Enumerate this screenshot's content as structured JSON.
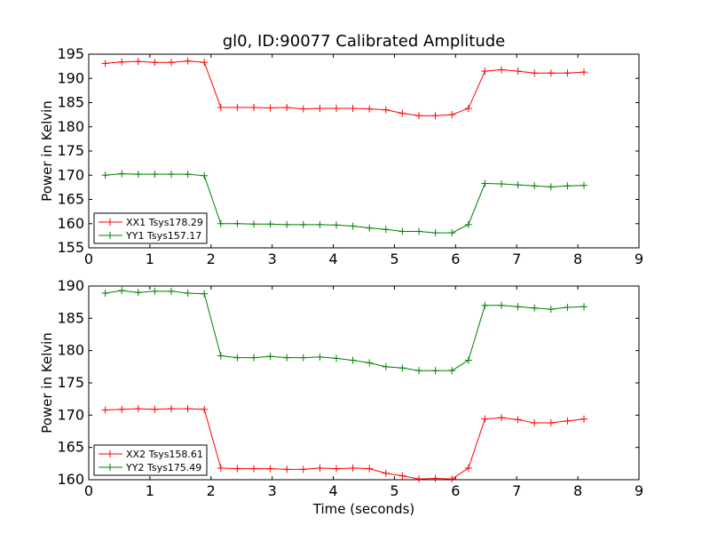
{
  "title": "gl0, ID:90077 Calibrated Amplitude",
  "chart_data": [
    {
      "type": "line",
      "ylabel": "Power in Kelvin",
      "xlabel": "",
      "xlim": [
        0,
        9
      ],
      "ylim": [
        155,
        195
      ],
      "xticks": [
        0,
        1,
        2,
        3,
        4,
        5,
        6,
        7,
        8,
        9
      ],
      "yticks": [
        155,
        160,
        165,
        170,
        175,
        180,
        185,
        190,
        195
      ],
      "legend": "lower-left",
      "x": [
        0.27,
        0.54,
        0.81,
        1.08,
        1.35,
        1.62,
        1.89,
        2.16,
        2.43,
        2.7,
        2.97,
        3.24,
        3.51,
        3.78,
        4.05,
        4.32,
        4.59,
        4.86,
        5.13,
        5.4,
        5.67,
        5.94,
        6.21,
        6.48,
        6.75,
        7.02,
        7.29,
        7.56,
        7.83,
        8.1
      ],
      "series": [
        {
          "name": "XX1 Tsys178.29",
          "color": "#ff0000",
          "values": [
            193.1,
            193.4,
            193.5,
            193.3,
            193.3,
            193.6,
            193.3,
            184.0,
            184.0,
            184.0,
            183.9,
            184.0,
            183.7,
            183.8,
            183.8,
            183.8,
            183.7,
            183.5,
            182.8,
            182.3,
            182.3,
            182.5,
            183.8,
            191.5,
            191.8,
            191.5,
            191.1,
            191.1,
            191.1,
            191.3
          ]
        },
        {
          "name": "YY1 Tsys157.17",
          "color": "#008000",
          "values": [
            170.0,
            170.3,
            170.2,
            170.2,
            170.2,
            170.2,
            169.9,
            160.0,
            160.0,
            159.9,
            159.9,
            159.8,
            159.8,
            159.8,
            159.7,
            159.5,
            159.1,
            158.8,
            158.4,
            158.4,
            158.1,
            158.1,
            159.8,
            168.3,
            168.2,
            168.0,
            167.8,
            167.6,
            167.8,
            167.9
          ]
        }
      ]
    },
    {
      "type": "line",
      "ylabel": "Power in Kelvin",
      "xlabel": "Time (seconds)",
      "xlim": [
        0,
        9
      ],
      "ylim": [
        160,
        190
      ],
      "xticks": [
        0,
        1,
        2,
        3,
        4,
        5,
        6,
        7,
        8,
        9
      ],
      "yticks": [
        160,
        165,
        170,
        175,
        180,
        185,
        190
      ],
      "legend": "lower-left",
      "x": [
        0.27,
        0.54,
        0.81,
        1.08,
        1.35,
        1.62,
        1.89,
        2.16,
        2.43,
        2.7,
        2.97,
        3.24,
        3.51,
        3.78,
        4.05,
        4.32,
        4.59,
        4.86,
        5.13,
        5.4,
        5.67,
        5.94,
        6.21,
        6.48,
        6.75,
        7.02,
        7.29,
        7.56,
        7.83,
        8.1
      ],
      "series": [
        {
          "name": "XX2 Tsys158.61",
          "color": "#ff0000",
          "values": [
            170.8,
            170.9,
            171.0,
            170.9,
            171.0,
            171.0,
            170.9,
            161.8,
            161.7,
            161.7,
            161.7,
            161.6,
            161.6,
            161.8,
            161.7,
            161.8,
            161.7,
            161.0,
            160.6,
            160.1,
            160.2,
            160.1,
            161.8,
            169.4,
            169.6,
            169.3,
            168.8,
            168.8,
            169.1,
            169.4
          ]
        },
        {
          "name": "YY2 Tsys175.49",
          "color": "#008000",
          "values": [
            188.9,
            189.3,
            189.0,
            189.2,
            189.2,
            188.9,
            188.8,
            179.2,
            178.9,
            178.9,
            179.1,
            178.9,
            178.9,
            179.0,
            178.8,
            178.5,
            178.1,
            177.5,
            177.3,
            176.9,
            176.9,
            176.9,
            178.5,
            187.0,
            187.0,
            186.8,
            186.6,
            186.4,
            186.7,
            186.8
          ]
        }
      ]
    }
  ]
}
